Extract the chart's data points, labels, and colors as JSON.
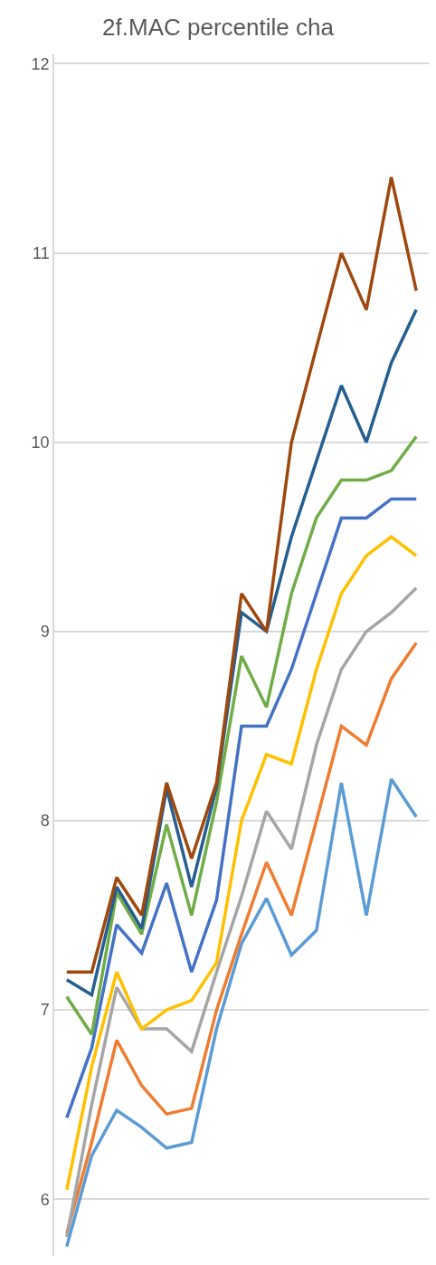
{
  "chart_data": {
    "type": "line",
    "title": "2f.MAC percentile cha",
    "categories": [
      null,
      null,
      null,
      null,
      null,
      null,
      null,
      null,
      null,
      null,
      null,
      null,
      null,
      null,
      null
    ],
    "series": [
      {
        "color": "#5b9bd5",
        "values": [
          5.75,
          6.23,
          6.47,
          6.38,
          6.27,
          6.3,
          6.9,
          7.35,
          7.59,
          7.29,
          7.42,
          8.2,
          7.5,
          8.22,
          8.02
        ]
      },
      {
        "color": "#ed7d31",
        "values": [
          5.82,
          6.3,
          6.84,
          6.6,
          6.45,
          6.48,
          7.0,
          7.4,
          7.78,
          7.5,
          8.0,
          8.5,
          8.4,
          8.75,
          8.94
        ]
      },
      {
        "color": "#a5a5a5",
        "values": [
          5.8,
          6.5,
          7.12,
          6.9,
          6.9,
          6.78,
          7.2,
          7.6,
          8.05,
          7.85,
          8.4,
          8.8,
          9.0,
          9.1,
          9.23
        ]
      },
      {
        "color": "#ffc000",
        "values": [
          6.05,
          6.7,
          7.2,
          6.9,
          7.0,
          7.05,
          7.25,
          8.0,
          8.35,
          8.3,
          8.8,
          9.2,
          9.4,
          9.5,
          9.4
        ]
      },
      {
        "color": "#4472c4",
        "values": [
          6.43,
          6.8,
          7.45,
          7.3,
          7.67,
          7.2,
          7.58,
          8.5,
          8.5,
          8.8,
          9.2,
          9.6,
          9.6,
          9.7,
          9.7
        ]
      },
      {
        "color": "#70ad47",
        "values": [
          7.07,
          6.87,
          7.62,
          7.4,
          7.98,
          7.5,
          8.1,
          8.87,
          8.6,
          9.2,
          9.6,
          9.8,
          9.8,
          9.85,
          10.03
        ]
      },
      {
        "color": "#255e91",
        "values": [
          7.16,
          7.08,
          7.65,
          7.43,
          8.17,
          7.65,
          8.18,
          9.1,
          9.0,
          9.5,
          9.9,
          10.3,
          10.0,
          10.42,
          10.7
        ]
      },
      {
        "color": "#9e480e",
        "values": [
          7.2,
          7.2,
          7.7,
          7.5,
          8.2,
          7.8,
          8.2,
          9.2,
          9.0,
          10.0,
          10.5,
          11.0,
          10.7,
          11.4,
          10.8
        ]
      }
    ],
    "ylim": [
      5.7,
      12.05
    ],
    "yticks": [
      6,
      7,
      8,
      9,
      10,
      11,
      12
    ],
    "grid": "y",
    "tick_labels": "y",
    "marker": "none",
    "line_style": "solid"
  }
}
